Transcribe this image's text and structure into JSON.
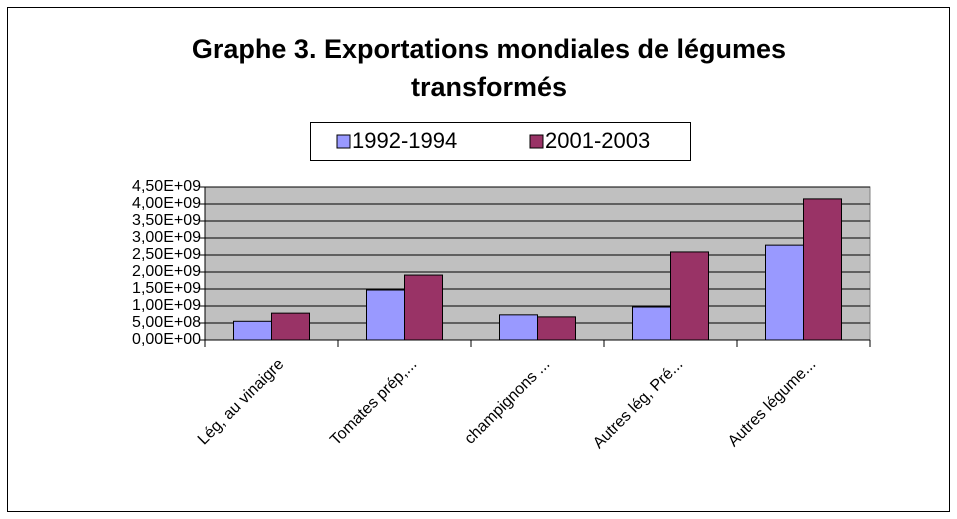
{
  "chart_data": {
    "type": "bar",
    "title": "Graphe 3. Exportations mondiales de légumes transformés",
    "categories": [
      "Lég, au vinaigre",
      "Tomates prép,...",
      "champignons ...",
      "Autres lég, Pré...",
      "Autres légume..."
    ],
    "series": [
      {
        "name": "1992-1994",
        "color": "#9999ff",
        "values": [
          550000000,
          1470000000,
          740000000,
          970000000,
          2790000000
        ]
      },
      {
        "name": "2001-2003",
        "color": "#993366",
        "values": [
          790000000,
          1910000000,
          680000000,
          2590000000,
          4150000000
        ]
      }
    ],
    "ylim": [
      0,
      4500000000
    ],
    "yticks": [
      {
        "value": 0,
        "label": "0,00E+00"
      },
      {
        "value": 500000000,
        "label": "5,00E+08"
      },
      {
        "value": 1000000000,
        "label": "1,00E+09"
      },
      {
        "value": 1500000000,
        "label": "1,50E+09"
      },
      {
        "value": 2000000000,
        "label": "2,00E+09"
      },
      {
        "value": 2500000000,
        "label": "2,50E+09"
      },
      {
        "value": 3000000000,
        "label": "3,00E+09"
      },
      {
        "value": 3500000000,
        "label": "3,50E+09"
      },
      {
        "value": 4000000000,
        "label": "4,00E+09"
      },
      {
        "value": 4500000000,
        "label": "4,50E+09"
      }
    ],
    "grid": true,
    "legend": "top"
  }
}
